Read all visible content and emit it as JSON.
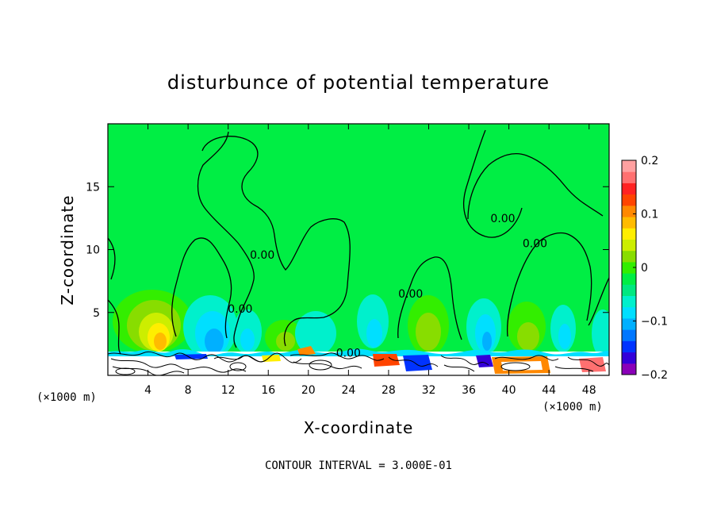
{
  "chart_data": {
    "type": "heatmap",
    "title": "disturbunce of potential temperature",
    "xlabel": "X-coordinate",
    "ylabel": "Z-coordinate",
    "x_unit": "(×1000 m)",
    "y_unit": "(×1000 m)",
    "xlim": [
      0,
      50
    ],
    "ylim": [
      0,
      20
    ],
    "xticks": [
      4,
      8,
      12,
      16,
      20,
      24,
      28,
      32,
      36,
      40,
      44,
      48
    ],
    "yticks": [
      5,
      10,
      15
    ],
    "colorbar": {
      "min": -0.2,
      "max": 0.2,
      "tick_values": [
        -0.2,
        -0.1,
        0,
        0.1,
        0.2
      ],
      "tick_labels": [
        "−0.2",
        "−0.1",
        "0",
        "0.1",
        "0.2"
      ],
      "colors": [
        "#8a00b8",
        "#3300d9",
        "#0033ff",
        "#0077ff",
        "#00b0ff",
        "#00dfff",
        "#00f0cc",
        "#00e880",
        "#00ee44",
        "#33ee00",
        "#88dd00",
        "#ccee00",
        "#ffee00",
        "#ffbb00",
        "#ff8800",
        "#ff4400",
        "#ff2222",
        "#ff7070",
        "#ffa0a0"
      ]
    },
    "contour_interval": 0.3,
    "contour_labels": [
      {
        "text": "0.00",
        "x": 15.4,
        "z": 9.6
      },
      {
        "text": "0.00",
        "x": 13.2,
        "z": 5.3
      },
      {
        "text": "0.00",
        "x": 30.2,
        "z": 6.5
      },
      {
        "text": "0.00",
        "x": 39.4,
        "z": 12.5
      },
      {
        "text": "0.00",
        "x": 42.6,
        "z": 10.5
      },
      {
        "text": "0.00",
        "x": 24.0,
        "z": 1.8
      }
    ]
  },
  "footer": {
    "contour_note": "CONTOUR INTERVAL = 3.000E-01"
  }
}
